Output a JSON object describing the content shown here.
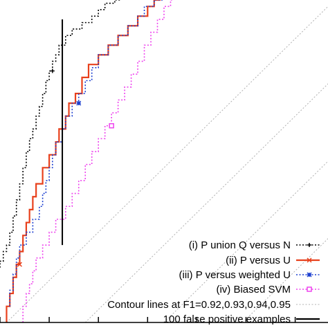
{
  "chart_data": {
    "type": "line",
    "title": "",
    "xlabel": "",
    "ylabel": "",
    "xlim": [
      0,
      1
    ],
    "ylim": [
      0,
      1
    ],
    "grid": false,
    "legend_position": "bottom-right",
    "series": [
      {
        "name": "(i) P union Q versus N",
        "color": "#000000",
        "dash": "dotted",
        "marker": "plus",
        "points": [
          [
            0.0,
            0.17
          ],
          [
            0.01,
            0.19
          ],
          [
            0.02,
            0.22
          ],
          [
            0.03,
            0.24
          ],
          [
            0.04,
            0.28
          ],
          [
            0.05,
            0.33
          ],
          [
            0.06,
            0.38
          ],
          [
            0.07,
            0.43
          ],
          [
            0.08,
            0.48
          ],
          [
            0.09,
            0.53
          ],
          [
            0.1,
            0.57
          ],
          [
            0.11,
            0.6
          ],
          [
            0.12,
            0.64
          ],
          [
            0.13,
            0.67
          ],
          [
            0.14,
            0.71
          ],
          [
            0.15,
            0.75
          ],
          [
            0.16,
            0.78
          ],
          [
            0.17,
            0.81
          ],
          [
            0.18,
            0.83
          ],
          [
            0.2,
            0.86
          ],
          [
            0.22,
            0.89
          ],
          [
            0.25,
            0.91
          ],
          [
            0.28,
            0.93
          ],
          [
            0.3,
            0.95
          ],
          [
            0.32,
            0.97
          ],
          [
            0.35,
            0.99
          ],
          [
            0.37,
            1.0
          ]
        ]
      },
      {
        "name": "(ii) P versus U",
        "color": "#e8401c",
        "dash": "solid",
        "marker": "cross",
        "points": [
          [
            0.02,
            0.0
          ],
          [
            0.03,
            0.05
          ],
          [
            0.04,
            0.09
          ],
          [
            0.05,
            0.14
          ],
          [
            0.06,
            0.18
          ],
          [
            0.07,
            0.22
          ],
          [
            0.08,
            0.27
          ],
          [
            0.09,
            0.31
          ],
          [
            0.1,
            0.35
          ],
          [
            0.11,
            0.39
          ],
          [
            0.13,
            0.43
          ],
          [
            0.15,
            0.48
          ],
          [
            0.17,
            0.52
          ],
          [
            0.18,
            0.56
          ],
          [
            0.2,
            0.6
          ],
          [
            0.21,
            0.64
          ],
          [
            0.23,
            0.68
          ],
          [
            0.25,
            0.71
          ],
          [
            0.27,
            0.76
          ],
          [
            0.3,
            0.8
          ],
          [
            0.33,
            0.83
          ],
          [
            0.36,
            0.86
          ],
          [
            0.39,
            0.89
          ],
          [
            0.42,
            0.92
          ],
          [
            0.45,
            0.95
          ],
          [
            0.47,
            0.98
          ],
          [
            0.49,
            1.0
          ]
        ]
      },
      {
        "name": "(iii) P versus weighted U",
        "color": "#1c3fd0",
        "dash": "dotted",
        "marker": "asterisk",
        "points": [
          [
            0.03,
            0.05
          ],
          [
            0.04,
            0.1
          ],
          [
            0.05,
            0.15
          ],
          [
            0.06,
            0.2
          ],
          [
            0.08,
            0.24
          ],
          [
            0.1,
            0.28
          ],
          [
            0.12,
            0.32
          ],
          [
            0.13,
            0.36
          ],
          [
            0.14,
            0.4
          ],
          [
            0.15,
            0.44
          ],
          [
            0.16,
            0.48
          ],
          [
            0.17,
            0.52
          ],
          [
            0.19,
            0.56
          ],
          [
            0.2,
            0.6
          ],
          [
            0.22,
            0.64
          ],
          [
            0.24,
            0.68
          ],
          [
            0.26,
            0.71
          ],
          [
            0.28,
            0.75
          ],
          [
            0.3,
            0.79
          ],
          [
            0.33,
            0.83
          ],
          [
            0.36,
            0.86
          ],
          [
            0.39,
            0.89
          ],
          [
            0.42,
            0.92
          ],
          [
            0.44,
            0.95
          ],
          [
            0.47,
            0.98
          ],
          [
            0.5,
            1.0
          ]
        ]
      },
      {
        "name": "(iv) Biased SVM",
        "color": "#ee44ee",
        "dash": "dotted",
        "marker": "square",
        "points": [
          [
            0.07,
            0.0
          ],
          [
            0.08,
            0.05
          ],
          [
            0.09,
            0.09
          ],
          [
            0.1,
            0.12
          ],
          [
            0.11,
            0.16
          ],
          [
            0.13,
            0.2
          ],
          [
            0.15,
            0.24
          ],
          [
            0.17,
            0.28
          ],
          [
            0.2,
            0.32
          ],
          [
            0.22,
            0.36
          ],
          [
            0.24,
            0.4
          ],
          [
            0.26,
            0.44
          ],
          [
            0.28,
            0.49
          ],
          [
            0.3,
            0.53
          ],
          [
            0.32,
            0.57
          ],
          [
            0.34,
            0.61
          ],
          [
            0.36,
            0.65
          ],
          [
            0.38,
            0.69
          ],
          [
            0.4,
            0.73
          ],
          [
            0.42,
            0.77
          ],
          [
            0.44,
            0.81
          ],
          [
            0.46,
            0.86
          ],
          [
            0.48,
            0.9
          ],
          [
            0.5,
            0.94
          ],
          [
            0.52,
            0.98
          ],
          [
            0.53,
            1.0
          ]
        ]
      }
    ],
    "contour_lines": {
      "label": "Contour lines at F1=0.92,0.93,0.94,0.95",
      "color": "#b0b0b0",
      "dash": "dotted",
      "offsets": [
        0.02,
        0.26,
        0.5,
        0.74
      ]
    },
    "reference_line": {
      "label": "100 false positive examples",
      "color": "#000000",
      "x": 0.19,
      "y_range": [
        0.24,
        0.94
      ]
    },
    "legend": [
      {
        "text": "(i) P union Q versus N",
        "series": 0
      },
      {
        "text": "(ii) P versus U",
        "series": 1
      },
      {
        "text": "(iii) P versus weighted U",
        "series": 2
      },
      {
        "text": "(iv) Biased SVM",
        "series": 3
      },
      {
        "text": "Contour lines at F1=0.92,0.93,0.94,0.95",
        "series": "contour"
      },
      {
        "text": "100 false positive examples",
        "series": "reference"
      }
    ],
    "x_ticks": [
      0.0,
      0.15,
      0.3,
      0.45,
      0.6,
      0.75,
      0.9
    ]
  }
}
